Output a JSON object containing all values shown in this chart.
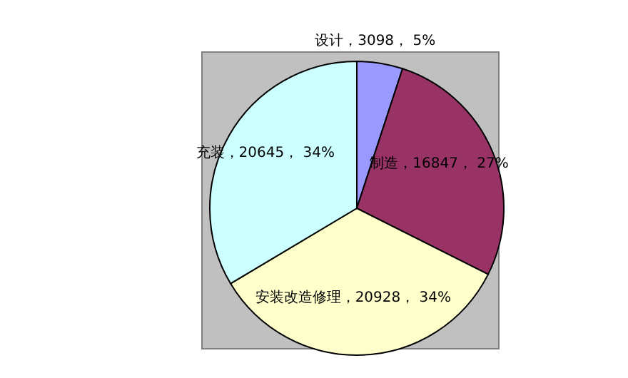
{
  "chart_data": {
    "type": "pie",
    "categories": [
      "设计",
      "制造",
      "安装改造修理",
      "充装"
    ],
    "values": [
      3098,
      16847,
      20928,
      20645
    ],
    "colors": [
      "#9999ff",
      "#993366",
      "#ffffcc",
      "#ccffff"
    ],
    "value_labels": [
      "3098， 5%",
      "16847， 27%",
      "20928， 34%",
      "20645， 34%"
    ],
    "legend": false
  }
}
